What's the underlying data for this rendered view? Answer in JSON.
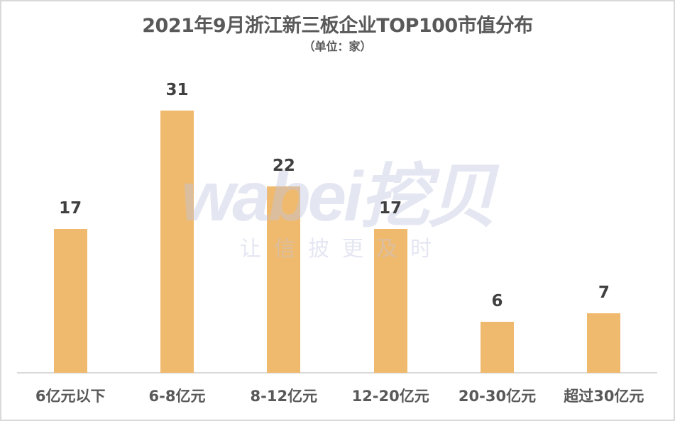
{
  "chart_data": {
    "type": "bar",
    "title": "2021年9月浙江新三板企业TOP100市值分布",
    "subtitle": "（单位：家）",
    "xlabel": "",
    "ylabel": "",
    "categories": [
      "6亿元以下",
      "6-8亿元",
      "8-12亿元",
      "12-20亿元",
      "20-30亿元",
      "超过30亿元"
    ],
    "values": [
      17,
      31,
      22,
      17,
      6,
      7
    ],
    "value_labels": [
      "17",
      "31",
      "22",
      "17",
      "6",
      "7"
    ],
    "ylim": [
      0,
      31
    ],
    "grid": false,
    "legend": "none",
    "bar_color": "#f0ba6e"
  },
  "watermark": {
    "logo": "wabei挖贝",
    "tagline": "让信披更及时"
  }
}
